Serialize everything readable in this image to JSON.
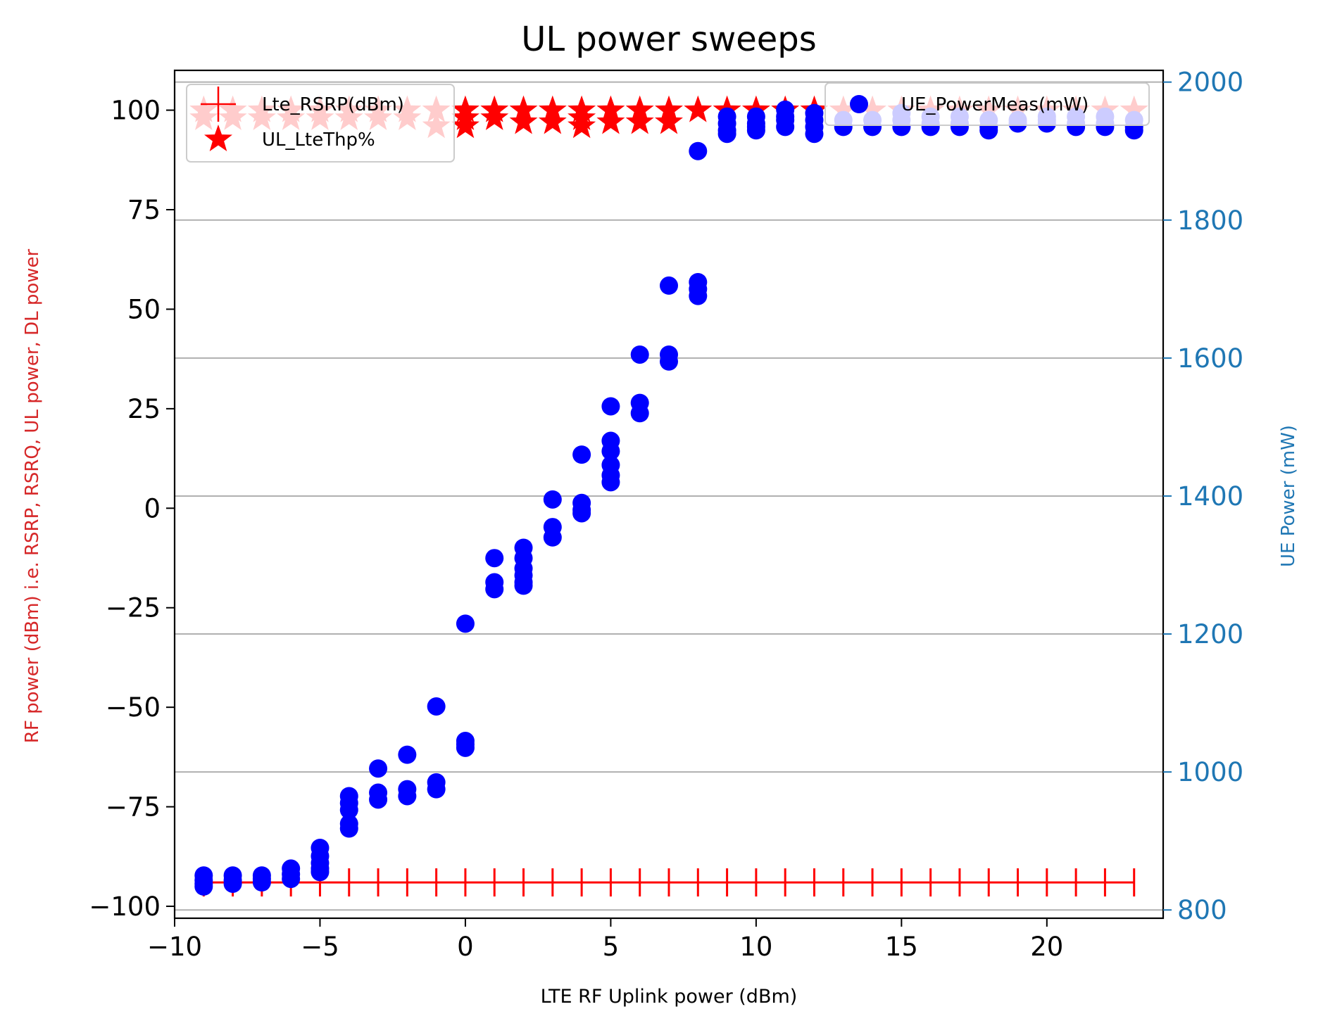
{
  "chart_data": {
    "type": "scatter",
    "title": "UL power sweeps",
    "xlabel": "LTE RF Uplink power (dBm)",
    "ylabel_left": "RF power (dBm) i.e. RSRP, RSRQ, UL power, DL power",
    "ylabel_right": "UE Power (mW)",
    "xlim": [
      -10,
      24
    ],
    "ylim_left": [
      -103,
      110
    ],
    "ylim_right": [
      788,
      2017
    ],
    "x_ticks": [
      -10,
      -5,
      0,
      5,
      10,
      15,
      20
    ],
    "x_tick_labels": [
      "−10",
      "−5",
      "0",
      "5",
      "10",
      "15",
      "20"
    ],
    "y_left_ticks": [
      -100,
      -75,
      -50,
      -25,
      0,
      25,
      50,
      75,
      100
    ],
    "y_left_tick_labels": [
      "−100",
      "−75",
      "−50",
      "−25",
      "0",
      "25",
      "50",
      "75",
      "100"
    ],
    "y_right_ticks": [
      800,
      1000,
      1200,
      1400,
      1600,
      1800,
      2000
    ],
    "y_right_tick_labels": [
      "800",
      "1000",
      "1200",
      "1400",
      "1600",
      "1800",
      "2000"
    ],
    "grid": "horizontal lines at right-axis ticks",
    "colors": {
      "rsrp": "#ff0000",
      "thp": "#ff0000",
      "ue_power": "#0000ff",
      "right_axis": "#1f77b4",
      "left_label": "#d62728",
      "grid": "#b0b0b0"
    },
    "legends": {
      "left": {
        "position": "upper left",
        "entries": [
          "Lte_RSRP(dBm)",
          "UL_LteThp%"
        ]
      },
      "right": {
        "position": "upper right",
        "entries": [
          "UE_PowerMeas(mW)"
        ]
      }
    },
    "series": [
      {
        "name": "Lte_RSRP(dBm)",
        "axis": "left",
        "marker": "plus-line",
        "x": [
          -9,
          -8,
          -7,
          -6,
          -5,
          -4,
          -3,
          -2,
          -1,
          0,
          1,
          2,
          3,
          4,
          5,
          6,
          7,
          8,
          9,
          10,
          11,
          12,
          13,
          14,
          15,
          16,
          17,
          18,
          19,
          20,
          21,
          22,
          23
        ],
        "y": [
          -94,
          -94,
          -94,
          -94,
          -94,
          -94,
          -94,
          -94,
          -94,
          -94,
          -94,
          -94,
          -94,
          -94,
          -94,
          -94,
          -94,
          -94,
          -94,
          -94,
          -94,
          -94,
          -94,
          -94,
          -94,
          -94,
          -94,
          -94,
          -94,
          -94,
          -94,
          -94,
          -94
        ]
      },
      {
        "name": "UL_LteThp%",
        "axis": "left",
        "marker": "star",
        "x": [
          -9,
          -9,
          -8,
          -8,
          -7,
          -7,
          -6,
          -6,
          -5,
          -5,
          -4,
          -4,
          -3,
          -3,
          -2,
          -2,
          -1,
          -1,
          0,
          0,
          0,
          1,
          1,
          2,
          2,
          3,
          3,
          4,
          4,
          4,
          5,
          5,
          6,
          6,
          7,
          7,
          8,
          9,
          10,
          11,
          12,
          13,
          14,
          15,
          16,
          17,
          18,
          19,
          20,
          21,
          22,
          23
        ],
        "y": [
          100,
          98,
          100,
          98,
          100,
          98,
          100,
          98,
          100,
          98,
          100,
          98,
          100,
          98,
          100,
          98,
          100,
          96,
          100,
          98,
          96,
          100,
          98,
          100,
          97,
          100,
          97,
          100,
          98,
          96,
          100,
          97,
          100,
          97,
          100,
          97,
          100,
          100,
          100,
          100,
          100,
          100,
          100,
          100,
          100,
          100,
          100,
          100,
          100,
          100,
          100,
          100
        ]
      },
      {
        "name": "UE_PowerMeas(mW)",
        "axis": "right",
        "marker": "circle",
        "x": [
          -9,
          -9,
          -9,
          -9,
          -8,
          -8,
          -8,
          -7,
          -7,
          -7,
          -6,
          -6,
          -6,
          -5,
          -5,
          -5,
          -5,
          -5,
          -4,
          -4,
          -4,
          -4,
          -4,
          -3,
          -3,
          -3,
          -2,
          -2,
          -2,
          -1,
          -1,
          -1,
          0,
          0,
          0,
          0,
          1,
          1,
          1,
          2,
          2,
          2,
          2,
          2,
          2,
          3,
          3,
          3,
          4,
          4,
          4,
          4,
          5,
          5,
          5,
          5,
          5,
          5,
          6,
          6,
          6,
          7,
          7,
          7,
          8,
          8,
          8,
          8,
          9,
          9,
          9,
          9,
          10,
          10,
          10,
          10,
          11,
          11,
          11,
          11,
          12,
          12,
          12,
          12,
          13,
          13,
          14,
          14,
          15,
          15,
          15,
          16,
          16,
          16,
          17,
          17,
          17,
          18,
          18,
          18,
          19,
          19,
          20,
          20,
          20,
          21,
          21,
          21,
          22,
          22,
          22,
          23,
          23,
          23
        ],
        "y": [
          850,
          843,
          838,
          834,
          850,
          843,
          838,
          850,
          845,
          840,
          860,
          852,
          845,
          890,
          878,
          868,
          860,
          855,
          965,
          955,
          945,
          925,
          918,
          1005,
          970,
          960,
          1025,
          975,
          965,
          1095,
          985,
          975,
          1045,
          1040,
          1035,
          1215,
          1310,
          1275,
          1265,
          1325,
          1310,
          1295,
          1285,
          1275,
          1270,
          1395,
          1355,
          1340,
          1460,
          1390,
          1380,
          1375,
          1530,
          1480,
          1465,
          1445,
          1430,
          1420,
          1605,
          1535,
          1520,
          1705,
          1605,
          1595,
          1710,
          1700,
          1690,
          1900,
          1950,
          1940,
          1930,
          1925,
          1950,
          1940,
          1935,
          1930,
          1960,
          1950,
          1945,
          1935,
          1955,
          1945,
          1935,
          1925,
          1945,
          1935,
          1945,
          1935,
          1955,
          1945,
          1935,
          1950,
          1940,
          1935,
          1950,
          1940,
          1935,
          1945,
          1935,
          1930,
          1945,
          1940,
          1950,
          1945,
          1940,
          1950,
          1940,
          1935,
          1950,
          1940,
          1935,
          1945,
          1935,
          1930
        ]
      }
    ]
  }
}
